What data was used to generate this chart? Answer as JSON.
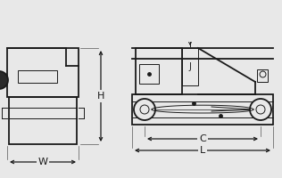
{
  "bg_color": "#e8e8e8",
  "line_color": "#1a1a1a",
  "lw": 1.3,
  "tlw": 0.7,
  "fig_w": 3.16,
  "fig_h": 2.0,
  "dpi": 100,
  "labels": {
    "W": "W",
    "H": "H",
    "C": "C",
    "L": "L",
    "J": "J"
  }
}
